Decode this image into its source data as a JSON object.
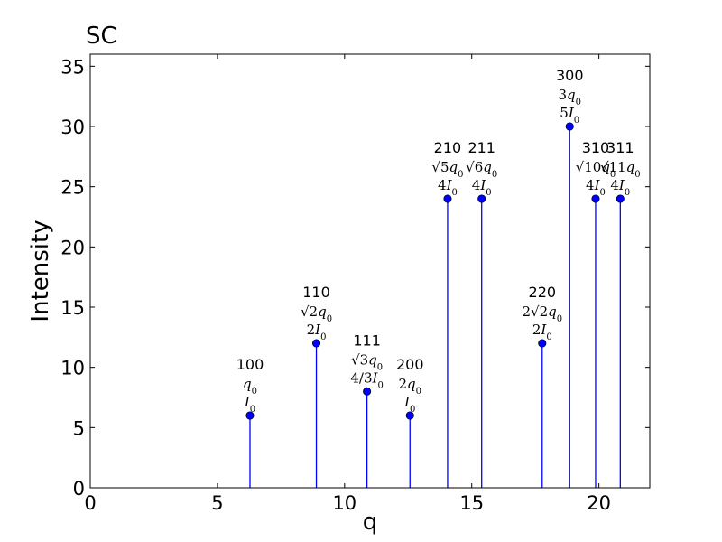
{
  "chart_data": {
    "type": "stem",
    "title": "SC",
    "xlabel": "q",
    "ylabel": "Intensity",
    "xlim": [
      0,
      22
    ],
    "ylim": [
      0,
      36
    ],
    "xticks": [
      0,
      5,
      10,
      15,
      20
    ],
    "yticks": [
      0,
      5,
      10,
      15,
      20,
      25,
      30,
      35
    ],
    "grid": false,
    "marker_color": "#0000ff",
    "stem_color": "#0000ff",
    "points": [
      {
        "hkl": "100",
        "x": 6.28,
        "y": 6,
        "q_label": [
          {
            "t": "q",
            "i": true
          },
          {
            "t": "0",
            "sub": true
          }
        ],
        "i_label": [
          {
            "t": "I",
            "i": true
          },
          {
            "t": "0",
            "sub": true
          }
        ]
      },
      {
        "hkl": "110",
        "x": 8.89,
        "y": 12,
        "q_label": [
          {
            "t": "√2"
          },
          {
            "t": "q",
            "i": true
          },
          {
            "t": "0",
            "sub": true
          }
        ],
        "i_label": [
          {
            "t": "2"
          },
          {
            "t": "I",
            "i": true
          },
          {
            "t": "0",
            "sub": true
          }
        ]
      },
      {
        "hkl": "111",
        "x": 10.88,
        "y": 8,
        "q_label": [
          {
            "t": "√3"
          },
          {
            "t": "q",
            "i": true
          },
          {
            "t": "0",
            "sub": true
          }
        ],
        "i_label": [
          {
            "t": "4/3"
          },
          {
            "t": "I",
            "i": true
          },
          {
            "t": "0",
            "sub": true
          }
        ]
      },
      {
        "hkl": "200",
        "x": 12.57,
        "y": 6,
        "q_label": [
          {
            "t": "2"
          },
          {
            "t": "q",
            "i": true
          },
          {
            "t": "0",
            "sub": true
          }
        ],
        "i_label": [
          {
            "t": "I",
            "i": true
          },
          {
            "t": "0",
            "sub": true
          }
        ]
      },
      {
        "hkl": "210",
        "x": 14.05,
        "y": 24,
        "q_label": [
          {
            "t": "√5"
          },
          {
            "t": "q",
            "i": true
          },
          {
            "t": "0",
            "sub": true
          }
        ],
        "i_label": [
          {
            "t": "4"
          },
          {
            "t": "I",
            "i": true
          },
          {
            "t": "0",
            "sub": true
          }
        ]
      },
      {
        "hkl": "211",
        "x": 15.39,
        "y": 24,
        "q_label": [
          {
            "t": "√6"
          },
          {
            "t": "q",
            "i": true
          },
          {
            "t": "0",
            "sub": true
          }
        ],
        "i_label": [
          {
            "t": "4"
          },
          {
            "t": "I",
            "i": true
          },
          {
            "t": "0",
            "sub": true
          }
        ]
      },
      {
        "hkl": "220",
        "x": 17.77,
        "y": 12,
        "q_label": [
          {
            "t": "2√2"
          },
          {
            "t": "q",
            "i": true
          },
          {
            "t": "0",
            "sub": true
          }
        ],
        "i_label": [
          {
            "t": "2"
          },
          {
            "t": "I",
            "i": true
          },
          {
            "t": "0",
            "sub": true
          }
        ]
      },
      {
        "hkl": "300",
        "x": 18.85,
        "y": 30,
        "q_label": [
          {
            "t": "3"
          },
          {
            "t": "q",
            "i": true
          },
          {
            "t": "0",
            "sub": true
          }
        ],
        "i_label": [
          {
            "t": "5"
          },
          {
            "t": "I",
            "i": true
          },
          {
            "t": "0",
            "sub": true
          }
        ]
      },
      {
        "hkl": "310",
        "x": 19.87,
        "y": 24,
        "q_label": [
          {
            "t": "√10"
          },
          {
            "t": "q",
            "i": true
          },
          {
            "t": "0",
            "sub": true
          }
        ],
        "i_label": [
          {
            "t": "4"
          },
          {
            "t": "I",
            "i": true
          },
          {
            "t": "0",
            "sub": true
          }
        ]
      },
      {
        "hkl": "311",
        "x": 20.84,
        "y": 24,
        "q_label": [
          {
            "t": "√11"
          },
          {
            "t": "q",
            "i": true
          },
          {
            "t": "0",
            "sub": true
          }
        ],
        "i_label": [
          {
            "t": "4"
          },
          {
            "t": "I",
            "i": true
          },
          {
            "t": "0",
            "sub": true
          }
        ]
      }
    ]
  }
}
